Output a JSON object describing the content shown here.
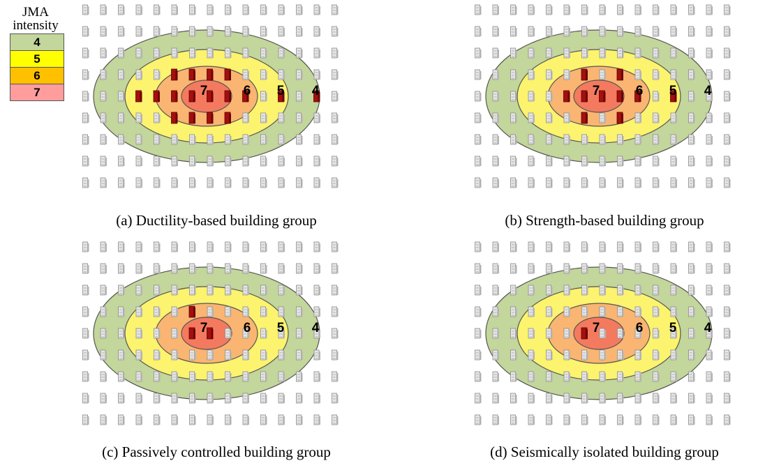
{
  "legend": {
    "title_line1": "JMA",
    "title_line2": "intensity",
    "items": [
      {
        "label": "4",
        "color": "#c3d69b"
      },
      {
        "label": "5",
        "color": "#ffff00"
      },
      {
        "label": "6",
        "color": "#ffc000"
      },
      {
        "label": "7",
        "color": "#ff9d9d"
      }
    ]
  },
  "zone_colors": {
    "4": "#c3d69b",
    "5": "#fcf36e",
    "6": "#f9b571",
    "7": "#f47a5f"
  },
  "zone_labels": [
    "7",
    "6",
    "5",
    "4"
  ],
  "damaged_color": "#a50f0f",
  "intact_color": "#e6e6e6",
  "panels": [
    {
      "id": "a",
      "caption": "(a) Ductility-based building group",
      "damaged_zones": [
        "7",
        "6"
      ],
      "extra_damaged": [
        [
          7,
          3
        ],
        [
          7,
          5
        ],
        [
          3,
          4
        ],
        [
          11,
          4
        ],
        [
          13,
          4
        ]
      ]
    },
    {
      "id": "b",
      "caption": "(b) Strength-based building group",
      "damaged_zones": [
        "7"
      ],
      "extra_damaged": [
        [
          5,
          4
        ],
        [
          9,
          4
        ],
        [
          6,
          3
        ],
        [
          8,
          3
        ],
        [
          6,
          5
        ],
        [
          8,
          5
        ],
        [
          11,
          4
        ]
      ]
    },
    {
      "id": "c",
      "caption": "(c) Passively controlled building group",
      "damaged_zones": [],
      "extra_damaged": [
        [
          6,
          4
        ],
        [
          7,
          4
        ],
        [
          6,
          3
        ]
      ]
    },
    {
      "id": "d",
      "caption": "(d) Seismically isolated building group",
      "damaged_zones": [],
      "extra_damaged": [
        [
          6,
          4
        ]
      ]
    }
  ]
}
